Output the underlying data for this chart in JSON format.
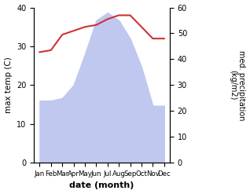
{
  "months": [
    "Jan",
    "Feb",
    "Mar",
    "Apr",
    "May",
    "Jun",
    "Jul",
    "Aug",
    "Sep",
    "Oct",
    "Nov",
    "Dec"
  ],
  "temperature": [
    28.5,
    29.0,
    33.0,
    34.0,
    35.0,
    35.5,
    37.0,
    38.0,
    38.0,
    35.0,
    32.0,
    32.0
  ],
  "rainfall": [
    24.0,
    24.0,
    25.0,
    30.0,
    42.0,
    55.0,
    58.0,
    55.0,
    48.0,
    37.0,
    22.0,
    22.0
  ],
  "temp_color": "#cc3333",
  "rain_color": "#c0c8f0",
  "temp_ylim": [
    0,
    40
  ],
  "rain_ylim": [
    0,
    60
  ],
  "temp_ylabel": "max temp (C)",
  "rain_ylabel": "med. precipitation\n(kg/m2)",
  "xlabel": "date (month)",
  "background_color": "#ffffff"
}
